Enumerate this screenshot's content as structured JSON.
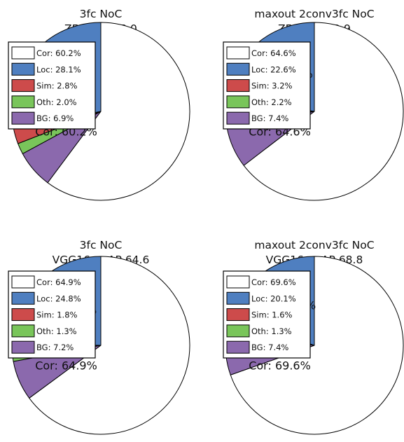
{
  "chart_data": [
    {
      "type": "pie",
      "title": "3fc NoC",
      "subtitle": "ZF, mAP 58.0",
      "legend_position": "top-left",
      "slices": [
        {
          "name": "Cor",
          "value": 60.2,
          "legend": "Cor: 60.2%",
          "color": "#ffffff"
        },
        {
          "name": "Loc",
          "value": 28.1,
          "legend": "Loc: 28.1%",
          "color": "#4f7fc0"
        },
        {
          "name": "Sim",
          "value": 2.8,
          "legend": "Sim: 2.8%",
          "color": "#cd4b4b"
        },
        {
          "name": "Oth",
          "value": 2.0,
          "legend": "Oth: 2.0%",
          "color": "#79c55a"
        },
        {
          "name": "BG",
          "value": 6.9,
          "legend": "BG: 6.9%",
          "color": "#8b69ad"
        }
      ],
      "annotations": [
        "Loc: 28.1%",
        "Cor: 60.2%"
      ]
    },
    {
      "type": "pie",
      "title": "maxout 2conv3fc NoC",
      "subtitle": "ZF, mAP 62.9",
      "legend_position": "top-left",
      "slices": [
        {
          "name": "Cor",
          "value": 64.6,
          "legend": "Cor: 64.6%",
          "color": "#ffffff"
        },
        {
          "name": "Loc",
          "value": 22.6,
          "legend": "Loc: 22.6%",
          "color": "#4f7fc0"
        },
        {
          "name": "Sim",
          "value": 3.2,
          "legend": "Sim: 3.2%",
          "color": "#cd4b4b"
        },
        {
          "name": "Oth",
          "value": 2.2,
          "legend": "Oth: 2.2%",
          "color": "#79c55a"
        },
        {
          "name": "BG",
          "value": 7.4,
          "legend": "BG: 7.4%",
          "color": "#8b69ad"
        }
      ],
      "annotations": [
        "Loc: 22.6%",
        "Cor: 64.6%"
      ]
    },
    {
      "type": "pie",
      "title": "3fc NoC",
      "subtitle": "VGG16, mAP 64.6",
      "legend_position": "top-left",
      "slices": [
        {
          "name": "Cor",
          "value": 64.9,
          "legend": "Cor: 64.9%",
          "color": "#ffffff"
        },
        {
          "name": "Loc",
          "value": 24.8,
          "legend": "Loc: 24.8%",
          "color": "#4f7fc0"
        },
        {
          "name": "Sim",
          "value": 1.8,
          "legend": "Sim: 1.8%",
          "color": "#cd4b4b"
        },
        {
          "name": "Oth",
          "value": 1.3,
          "legend": "Oth: 1.3%",
          "color": "#79c55a"
        },
        {
          "name": "BG",
          "value": 7.2,
          "legend": "BG: 7.2%",
          "color": "#8b69ad"
        }
      ],
      "annotations": [
        "Loc: 24.8%",
        "Cor: 64.9%"
      ]
    },
    {
      "type": "pie",
      "title": "maxout 2conv3fc NoC",
      "subtitle": "VGG16, mAP 68.8",
      "legend_position": "top-left",
      "slices": [
        {
          "name": "Cor",
          "value": 69.6,
          "legend": "Cor: 69.6%",
          "color": "#ffffff"
        },
        {
          "name": "Loc",
          "value": 20.1,
          "legend": "Loc: 20.1%",
          "color": "#4f7fc0"
        },
        {
          "name": "Sim",
          "value": 1.6,
          "legend": "Sim: 1.6%",
          "color": "#cd4b4b"
        },
        {
          "name": "Oth",
          "value": 1.3,
          "legend": "Oth: 1.3%",
          "color": "#79c55a"
        },
        {
          "name": "BG",
          "value": 7.4,
          "legend": "BG: 7.4%",
          "color": "#8b69ad"
        }
      ],
      "annotations": [
        "Loc: 20.1%",
        "Cor: 69.6%"
      ]
    }
  ]
}
